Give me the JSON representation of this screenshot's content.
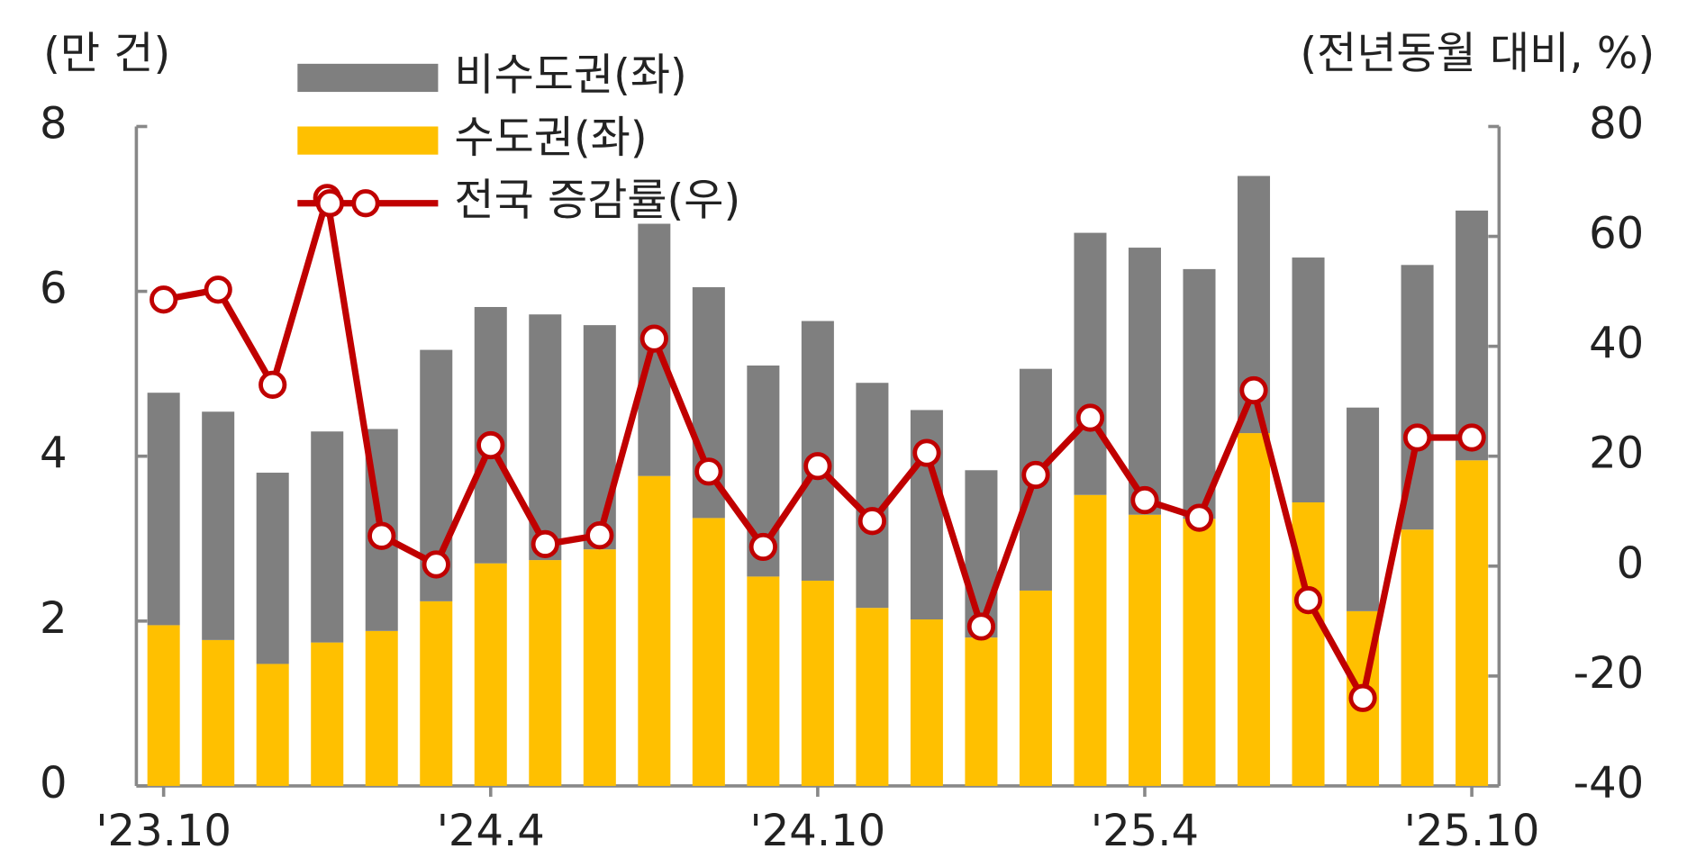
{
  "chart_data": {
    "type": "bar",
    "y_label": "(만 건)",
    "y2_label": "(전년동월 대비, %)",
    "categories": [
      "'23.10",
      null,
      null,
      null,
      null,
      null,
      "'24.4",
      null,
      null,
      null,
      null,
      null,
      "'24.10",
      null,
      null,
      null,
      null,
      null,
      "'25.4",
      null,
      null,
      null,
      null,
      null,
      "'25.10"
    ],
    "stacked": true,
    "series": [
      {
        "name": "비수도권(좌)",
        "color": "#7f7f7f",
        "type": "bar",
        "values": [
          2.82,
          2.77,
          2.32,
          2.56,
          2.45,
          3.05,
          3.11,
          2.98,
          2.72,
          3.06,
          2.8,
          2.56,
          3.15,
          2.73,
          2.54,
          2.03,
          2.69,
          3.18,
          3.24,
          3.03,
          3.12,
          2.97,
          2.47,
          3.21,
          3.03
        ]
      },
      {
        "name": "수도권(좌)",
        "color": "#ffc000",
        "type": "bar",
        "values": [
          1.95,
          1.77,
          1.48,
          1.74,
          1.88,
          2.24,
          2.7,
          2.74,
          2.87,
          3.76,
          3.25,
          2.54,
          2.49,
          2.16,
          2.02,
          1.8,
          2.37,
          3.53,
          3.29,
          3.24,
          4.28,
          3.44,
          2.12,
          3.11,
          3.95
        ]
      },
      {
        "name": "전국 증감률(우)",
        "color": "#c00000",
        "type": "line",
        "axis": "y2",
        "values": [
          48.5,
          50.3,
          33,
          67,
          5.5,
          0.3,
          22,
          4,
          5.6,
          41.4,
          17.2,
          3.5,
          18.2,
          8.2,
          20.6,
          -11,
          16.6,
          27,
          12,
          8.8,
          32,
          -6.2,
          -24,
          23.4,
          23.4
        ]
      }
    ],
    "ylim": [
      0,
      8
    ],
    "yticks": [
      0,
      2,
      4,
      6,
      8
    ],
    "y2lim": [
      -40,
      80
    ],
    "y2ticks": [
      -40,
      -20,
      0,
      20,
      40,
      60,
      80
    ]
  }
}
